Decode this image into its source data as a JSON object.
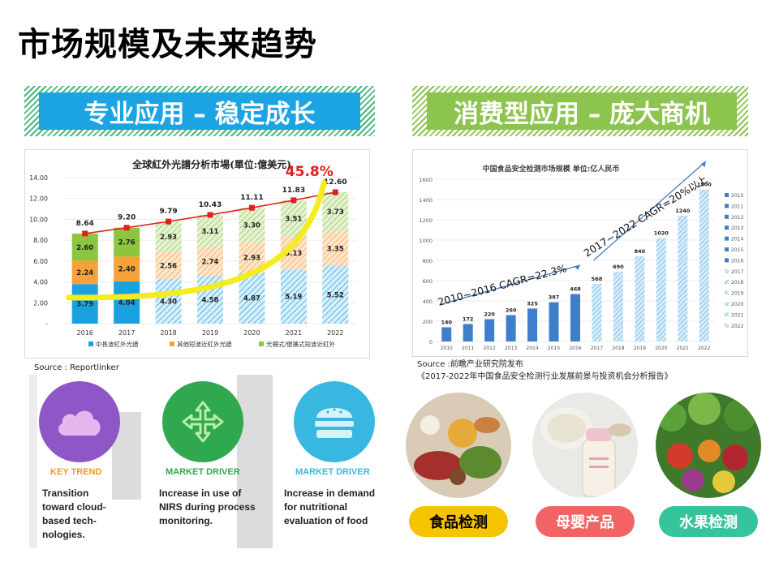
{
  "page": {
    "title": "市场规模及未来趋势"
  },
  "left": {
    "banner": "专业应用 – 稳定成长",
    "source": "Source : Reportlinker",
    "features": [
      {
        "label": "KEY TREND",
        "text": [
          "Transition",
          "toward cloud-",
          "based tech-",
          "nologies."
        ]
      },
      {
        "label": "MARKET DRIVER",
        "text": [
          "Increase in use of",
          "NIRS during process",
          "monitoring."
        ]
      },
      {
        "label": "MARKET DRIVER",
        "text": [
          "Increase in demand",
          "for nutritional",
          "evaluation of food"
        ]
      }
    ]
  },
  "right": {
    "banner": "消费型应用 – 庞大商机",
    "source_lines": [
      "Source :前瞻产业研究院发布",
      "《2017-2022年中国食品安全检测行业发展前景与投资机会分析报告》"
    ],
    "pills": [
      {
        "label": "食品检测",
        "color": "#f5c400",
        "text_color": "#000000"
      },
      {
        "label": "母婴产品",
        "color": "#f26363",
        "text_color": "#ffffff"
      },
      {
        "label": "水果检测",
        "color": "#35c49b",
        "text_color": "#ffffff"
      }
    ]
  },
  "colors": {
    "left_banner": "#1ba3e3",
    "left_hatch": "#45b97c",
    "right_banner": "#8dc450",
    "right_hatch": "#8dc450",
    "circle1": "#8e57c7",
    "circle2": "#2fa84f",
    "circle3": "#38b8e0",
    "label1": "#f29a1f",
    "label2": "#2fa84f",
    "label3": "#38b8e0"
  },
  "chart_data": [
    {
      "type": "bar",
      "title": "全球紅外光譜分析市場(單位:億美元)",
      "categories": [
        "2016",
        "2017",
        "2018",
        "2019",
        "2020",
        "2021",
        "2022"
      ],
      "series": [
        {
          "name": "中長波紅外光譜",
          "values": [
            3.79,
            4.04,
            4.3,
            4.58,
            4.87,
            5.19,
            5.52
          ]
        },
        {
          "name": "其他短波近紅外光譜",
          "values": [
            2.24,
            2.4,
            2.56,
            2.74,
            2.93,
            3.13,
            3.35
          ]
        },
        {
          "name": "光柵式/便攜式短波近紅外",
          "values": [
            2.6,
            2.76,
            2.93,
            3.11,
            3.3,
            3.51,
            3.73
          ]
        }
      ],
      "value_labels": [
        [
          "3.79",
          "4.04",
          "4.30",
          "4.58",
          "4.87",
          "5.19",
          "5.52"
        ],
        [
          "2.24",
          "2.40",
          "2.56",
          "2.74",
          "2.93",
          "3.13",
          "3.35"
        ],
        [
          "2.60",
          "2.76",
          "2.93",
          "3.11",
          "3.30",
          "3.51",
          "3.73"
        ]
      ],
      "totals": [
        8.64,
        9.2,
        9.79,
        10.43,
        11.11,
        11.83,
        12.6
      ],
      "total_labels": [
        "8.64",
        "9.20",
        "9.79",
        "10.43",
        "11.11",
        "11.83",
        "12.60"
      ],
      "yticks": [
        "-",
        "2.00",
        "4.00",
        "6.00",
        "8.00",
        "10.00",
        "12.00",
        "14.00"
      ],
      "ylim": [
        0,
        14
      ],
      "annotation": "45.8%",
      "series_colors": [
        "#1aa1e0",
        "#f7a13a",
        "#8cc63f"
      ],
      "line_color": "#e0201b",
      "legend_position": "bottom"
    },
    {
      "type": "bar",
      "title": "中国食品安全检测市场规模   单位:亿人民币",
      "categories": [
        "2010",
        "2011",
        "2012",
        "2013",
        "2014",
        "2015",
        "2016",
        "2017",
        "2018",
        "2019",
        "2020",
        "2021",
        "2022"
      ],
      "values": [
        140,
        172,
        220,
        260,
        325,
        387,
        468,
        568,
        690,
        840,
        1020,
        1240,
        1500
      ],
      "value_labels": [
        "140",
        "172",
        "220",
        "260",
        "325",
        "387",
        "468",
        "568",
        "690",
        "840",
        "1020",
        "1240",
        "1500"
      ],
      "yticks": [
        "0",
        "200",
        "400",
        "600",
        "800",
        "1000",
        "1200",
        "1400",
        "1600"
      ],
      "ylim": [
        0,
        1600
      ],
      "legend": [
        "2010",
        "2011",
        "2012",
        "2013",
        "2014",
        "2015",
        "2016",
        "2017",
        "2018",
        "2019",
        "2020",
        "2021",
        "2022"
      ],
      "legend_position": "right",
      "annotations": [
        "2010~2016 CAGR=22.3%",
        "2017~2022 CAGR=20%以上"
      ],
      "historical_color": "#3f7ec9",
      "forecast_color": "#5aaee6"
    }
  ]
}
